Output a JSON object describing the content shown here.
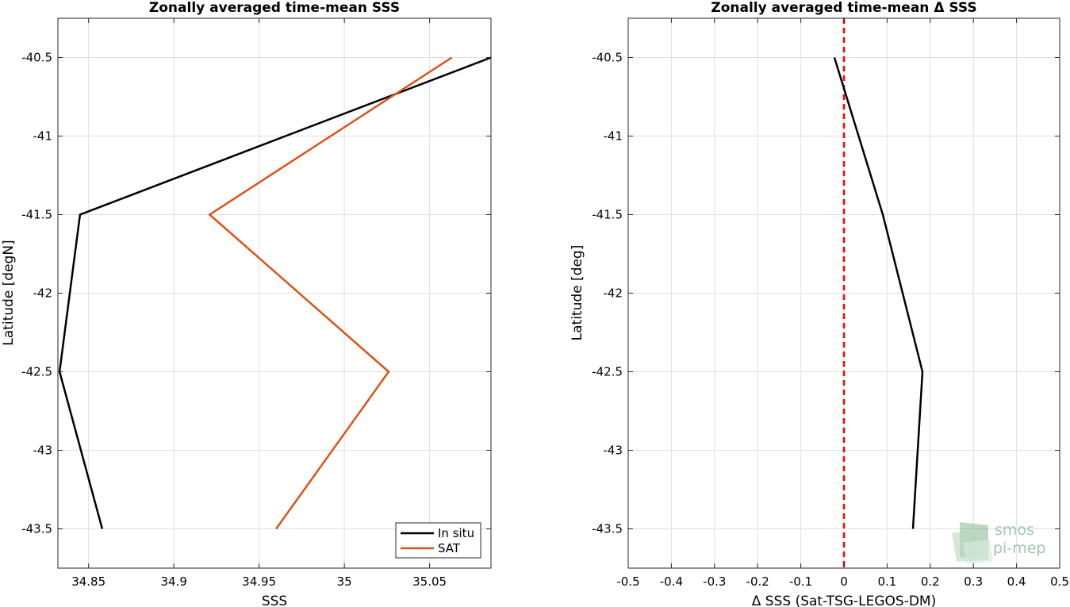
{
  "chart_data": [
    {
      "type": "line",
      "title": "Zonally averaged time-mean SSS",
      "xlabel": "SSS",
      "ylabel": "Latitude [degN]",
      "xlim": [
        34.832,
        35.086
      ],
      "ylim": [
        -43.75,
        -40.25
      ],
      "xticks": [
        34.85,
        34.9,
        34.95,
        35,
        35.05
      ],
      "xtick_labels": [
        "34.85",
        "34.9",
        "34.95",
        "35",
        "35.05"
      ],
      "yticks": [
        -40.5,
        -41,
        -41.5,
        -42,
        -42.5,
        -43,
        -43.5
      ],
      "ytick_labels": [
        "-40.5",
        "-41",
        "-41.5",
        "-42",
        "-42.5",
        "-43",
        "-43.5"
      ],
      "grid": true,
      "legend": "bottom-right",
      "series": [
        {
          "name": "In situ",
          "color": "#000000",
          "x": [
            34.858,
            34.833,
            34.845,
            35.086
          ],
          "y": [
            -43.5,
            -42.5,
            -41.5,
            -40.5
          ]
        },
        {
          "name": "SAT",
          "color": "#d95319",
          "x": [
            34.96,
            35.026,
            34.921,
            35.063
          ],
          "y": [
            -43.5,
            -42.5,
            -41.5,
            -40.5
          ]
        }
      ]
    },
    {
      "type": "line",
      "title": "Zonally averaged time-mean Δ SSS",
      "xlabel": "Δ SSS (Sat-TSG-LEGOS-DM)",
      "ylabel": "Latitude [deg]",
      "xlim": [
        -0.5,
        0.5
      ],
      "ylim": [
        -43.75,
        -40.25
      ],
      "xticks": [
        -0.5,
        -0.4,
        -0.3,
        -0.2,
        -0.1,
        0,
        0.1,
        0.2,
        0.3,
        0.4,
        0.5
      ],
      "xtick_labels": [
        "-0.5",
        "-0.4",
        "-0.3",
        "-0.2",
        "-0.1",
        "0",
        "0.1",
        "0.2",
        "0.3",
        "0.4",
        "0.5"
      ],
      "yticks": [
        -40.5,
        -41,
        -41.5,
        -42,
        -42.5,
        -43,
        -43.5
      ],
      "ytick_labels": [
        "-40.5",
        "-41",
        "-41.5",
        "-42",
        "-42.5",
        "-43",
        "-43.5"
      ],
      "grid": true,
      "reference_line": {
        "x": 0,
        "color": "#ff0000",
        "style": "dashed"
      },
      "series": [
        {
          "color": "#000000",
          "x": [
            0.16,
            0.182,
            0.09,
            -0.022
          ],
          "y": [
            -43.5,
            -42.5,
            -41.5,
            -40.5
          ]
        }
      ]
    }
  ],
  "watermark": {
    "line1": "smos",
    "line2": "pi-mep",
    "color": "#8fbf9c"
  }
}
